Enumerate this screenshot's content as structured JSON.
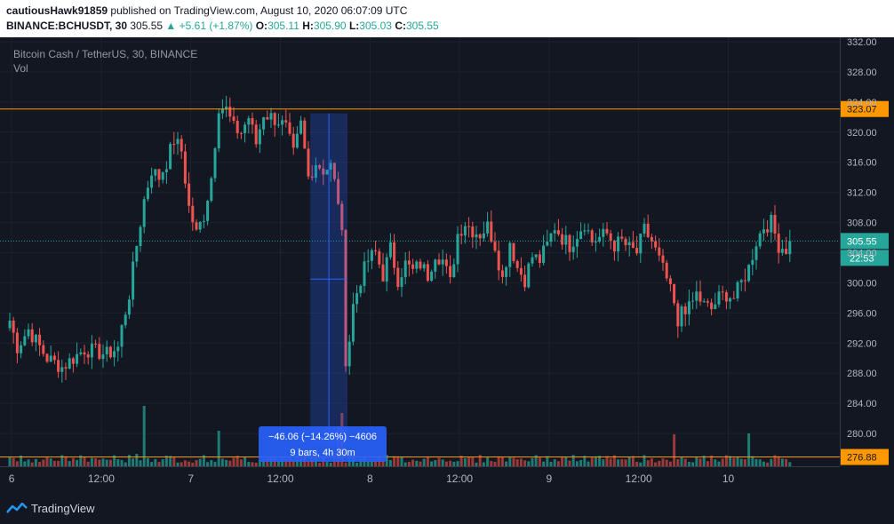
{
  "header": {
    "username": "cautiousHawk91859",
    "published_text": "published on TradingView.com, August 10, 2020 06:07:09 UTC",
    "symbol": "BINANCE:BCHUSDT, 30",
    "last": "305.55",
    "change_arrow": "▲",
    "change": "+5.61 (+1.87%)",
    "o_label": "O:",
    "o": "305.11",
    "h_label": "H:",
    "h": "305.90",
    "l_label": "L:",
    "l": "305.03",
    "c_label": "C:",
    "c": "305.55"
  },
  "pane": {
    "title": "Bitcoin Cash / TetherUS, 30, BINANCE",
    "vol_label": "Vol"
  },
  "footer": {
    "brand": "TradingView",
    "logo_icon": "tradingview-logo-icon"
  },
  "colors": {
    "up": "#26a69a",
    "down": "#ef5350",
    "up_vol": "#1f7b73",
    "down_vol": "#9c3a3a",
    "hline": "#ff9800",
    "measure": "#2962ff",
    "current_price": "#26a69a"
  },
  "chart_data": {
    "type": "candlestick",
    "title": "Bitcoin Cash / TetherUS, 30, BINANCE",
    "ylim": [
      276,
      332
    ],
    "y_ticks": [
      280,
      284,
      288,
      292,
      296,
      300,
      304,
      308,
      312,
      316,
      320,
      324,
      328,
      332
    ],
    "y_tick_labels": [
      "280.00",
      "284.00",
      "288.00",
      "292.00",
      "296.00",
      "300.00",
      "304.00",
      "308.00",
      "312.00",
      "316.00",
      "320.00",
      "324.00",
      "328.00",
      "332.00"
    ],
    "x_ticks": [
      "6",
      "12:00",
      "7",
      "12:00",
      "8",
      "12:00",
      "9",
      "12:00",
      "10"
    ],
    "x_tick_positions": [
      0.5,
      24.5,
      48.5,
      72.5,
      96.5,
      120.5,
      144.5,
      168.5,
      192.5
    ],
    "n_bars": 210,
    "price_path": [
      [
        0,
        295
      ],
      [
        2,
        291.5
      ],
      [
        5,
        293.8
      ],
      [
        10,
        290
      ],
      [
        14,
        288.8
      ],
      [
        20,
        291.2
      ],
      [
        26,
        290.5
      ],
      [
        29,
        291.4
      ],
      [
        30,
        294
      ],
      [
        32,
        298.5
      ],
      [
        34,
        305
      ],
      [
        36,
        311
      ],
      [
        38,
        315
      ],
      [
        40,
        314
      ],
      [
        42,
        316
      ],
      [
        44,
        319
      ],
      [
        46,
        317.5
      ],
      [
        48,
        310
      ],
      [
        50,
        306.5
      ],
      [
        52,
        309
      ],
      [
        54,
        314
      ],
      [
        56,
        323.5
      ],
      [
        58,
        323
      ],
      [
        60,
        320.5
      ],
      [
        62,
        320
      ],
      [
        64,
        322
      ],
      [
        66,
        318.5
      ],
      [
        68,
        322.5
      ],
      [
        70,
        322
      ],
      [
        72,
        321.5
      ],
      [
        74,
        320.5
      ],
      [
        76,
        317
      ],
      [
        78,
        321
      ],
      [
        80,
        314
      ],
      [
        82,
        316
      ],
      [
        84,
        315
      ],
      [
        86,
        315.5
      ],
      [
        88,
        311
      ],
      [
        89,
        306
      ],
      [
        90,
        290
      ],
      [
        91,
        292.5
      ],
      [
        92,
        297
      ],
      [
        94,
        300.5
      ],
      [
        96,
        303
      ],
      [
        98,
        304
      ],
      [
        100,
        301
      ],
      [
        102,
        304.5
      ],
      [
        104,
        300.5
      ],
      [
        106,
        302.5
      ],
      [
        108,
        301.5
      ],
      [
        110,
        302.5
      ],
      [
        112,
        301
      ],
      [
        114,
        304
      ],
      [
        116,
        303
      ],
      [
        118,
        300
      ],
      [
        120,
        306.5
      ],
      [
        122,
        308
      ],
      [
        124,
        307
      ],
      [
        126,
        306.5
      ],
      [
        128,
        307.5
      ],
      [
        130,
        305
      ],
      [
        132,
        300.5
      ],
      [
        134,
        305.5
      ],
      [
        136,
        302
      ],
      [
        138,
        300.5
      ],
      [
        140,
        303.5
      ],
      [
        142,
        303
      ],
      [
        144,
        305
      ],
      [
        146,
        307.5
      ],
      [
        148,
        306
      ],
      [
        150,
        305
      ],
      [
        152,
        306.5
      ],
      [
        154,
        308
      ],
      [
        156,
        305.5
      ],
      [
        158,
        306
      ],
      [
        160,
        306.5
      ],
      [
        162,
        305
      ],
      [
        164,
        305.5
      ],
      [
        166,
        304.5
      ],
      [
        168,
        304
      ],
      [
        170,
        307
      ],
      [
        172,
        305.5
      ],
      [
        174,
        303
      ],
      [
        176,
        300.5
      ],
      [
        178,
        297
      ],
      [
        179,
        293.5
      ],
      [
        180,
        297
      ],
      [
        182,
        296.5
      ],
      [
        184,
        298.5
      ],
      [
        186,
        297
      ],
      [
        188,
        296.5
      ],
      [
        190,
        298
      ],
      [
        192,
        298.5
      ],
      [
        194,
        298
      ],
      [
        196,
        300
      ],
      [
        198,
        302
      ],
      [
        200,
        305.5
      ],
      [
        202,
        307.5
      ],
      [
        204,
        308
      ],
      [
        206,
        305
      ],
      [
        208,
        304.5
      ],
      [
        209,
        305.55
      ]
    ],
    "volume_spikes": [
      [
        34,
        14
      ],
      [
        36,
        68
      ],
      [
        56,
        40
      ],
      [
        88,
        45
      ],
      [
        89,
        60
      ],
      [
        178,
        36
      ],
      [
        198,
        37
      ]
    ],
    "horizontal_lines": [
      323.07,
      276.88
    ],
    "horizontal_line_labels": [
      "323.07",
      "276.88"
    ],
    "current_price": 305.55,
    "current_price_label": "305.55",
    "countdown_label": "22:53",
    "measure": {
      "start_bar": 81,
      "end_bar": 90,
      "start_price": 322.5,
      "end_price": 278.5,
      "line1": "−46.06 (−14.26%) −4606",
      "line2": "9 bars, 4h 30m"
    }
  }
}
